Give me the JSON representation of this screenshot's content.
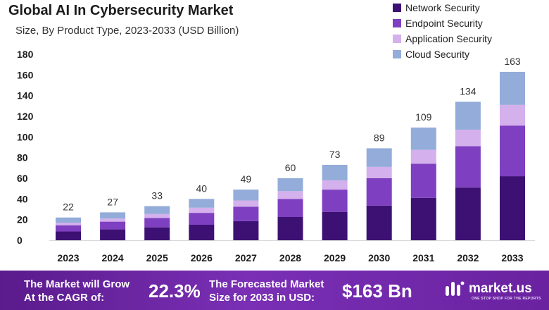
{
  "header": {
    "title": "Global AI In Cybersecurity  Market",
    "subtitle": "Size, By Product Type, 2023-2033 (USD Billion)"
  },
  "legend": [
    {
      "label": "Network Security",
      "color": "#3d1173"
    },
    {
      "label": "Endpoint Security",
      "color": "#7e3fc0"
    },
    {
      "label": "Application Security",
      "color": "#d4b0ec"
    },
    {
      "label": "Cloud Security",
      "color": "#93acd9"
    }
  ],
  "chart_data": {
    "type": "bar",
    "stacked": true,
    "title": "Global AI In Cybersecurity Market",
    "subtitle": "Size, By Product Type, 2023-2033 (USD Billion)",
    "xlabel": "",
    "ylabel": "",
    "ylim": [
      0,
      180
    ],
    "yticks": [
      0,
      20,
      40,
      60,
      80,
      100,
      120,
      140,
      160,
      180
    ],
    "grid": false,
    "legend_position": "top-right",
    "categories": [
      "2023",
      "2024",
      "2025",
      "2026",
      "2027",
      "2028",
      "2029",
      "2030",
      "2031",
      "2032",
      "2033"
    ],
    "totals": [
      22,
      27,
      33,
      40,
      49,
      60,
      73,
      89,
      109,
      134,
      163
    ],
    "series": [
      {
        "name": "Network Security",
        "color": "#3d1173",
        "values": [
          8.5,
          10.5,
          12.5,
          15,
          18.5,
          22.5,
          27.5,
          33.5,
          41,
          51,
          62
        ]
      },
      {
        "name": "Endpoint Security",
        "color": "#7e3fc0",
        "values": [
          6,
          7.5,
          9,
          11.5,
          14,
          17.5,
          21.5,
          26.5,
          33,
          40,
          49
        ]
      },
      {
        "name": "Application Security",
        "color": "#d4b0ec",
        "values": [
          2.5,
          3,
          4,
          5,
          6,
          7.5,
          9,
          11,
          13.5,
          16,
          20
        ]
      },
      {
        "name": "Cloud Security",
        "color": "#93acd9",
        "values": [
          5,
          6,
          7.5,
          8.5,
          10.5,
          12.5,
          15,
          18,
          21.5,
          27,
          32
        ]
      }
    ]
  },
  "footer": {
    "cagr_text_1": "The Market will Grow",
    "cagr_text_2": "At the CAGR of:",
    "cagr_value": "22.3%",
    "forecast_text_1": "The Forecasted Market",
    "forecast_text_2": "Size for 2033 in USD:",
    "forecast_value": "$163 Bn",
    "brand": "market.us",
    "tagline": "ONE STOP SHOP FOR THE REPORTS"
  }
}
